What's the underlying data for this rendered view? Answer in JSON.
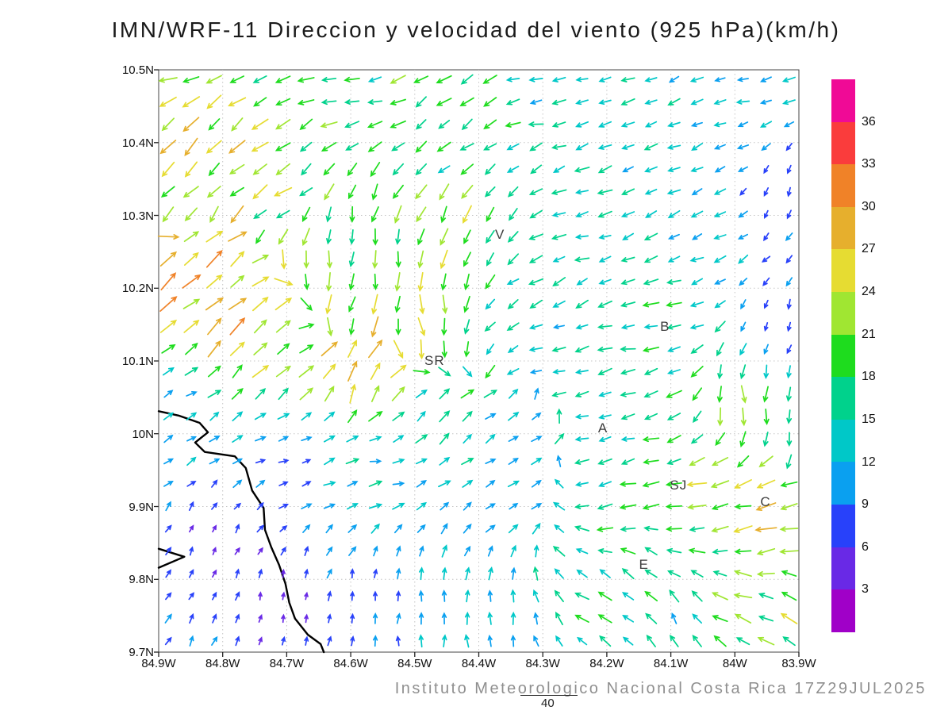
{
  "title": "IMN/WRF-11 Direccion y velocidad del viento (925 hPa)(km/h)",
  "footer": {
    "credit": "Instituto Meteorologico Nacional Costa Rica 17Z29JUL2025",
    "reference_vector_label": "40"
  },
  "axes": {
    "lon_min": -84.9,
    "lon_max": -83.9,
    "lat_min": 9.7,
    "lat_max": 10.5,
    "x_ticks": [
      "84.9W",
      "84.8W",
      "84.7W",
      "84.6W",
      "84.5W",
      "84.4W",
      "84.3W",
      "84.2W",
      "84.1W",
      "84W",
      "83.9W"
    ],
    "y_ticks": [
      "10.5N",
      "10.4N",
      "10.3N",
      "10.2N",
      "10.1N",
      "10N",
      "9.9N",
      "9.8N",
      "9.7N"
    ],
    "grid": "dotted"
  },
  "colorbar": {
    "levels": [
      3,
      6,
      9,
      12,
      15,
      18,
      21,
      24,
      27,
      30,
      33,
      36
    ],
    "colors_low_to_high": [
      "#a000c8",
      "#6929e6",
      "#2841fa",
      "#0aa0f0",
      "#00c8c8",
      "#00d28c",
      "#1edc1e",
      "#a0e632",
      "#e6dc32",
      "#e6af2d",
      "#f08228",
      "#fa3c3c",
      "#f00a96"
    ],
    "units": "km/h"
  },
  "stations": [
    {
      "label": "V",
      "lon": -84.367,
      "lat": 10.273
    },
    {
      "label": "B",
      "lon": -84.109,
      "lat": 10.147
    },
    {
      "label": "SR",
      "lon": -84.469,
      "lat": 10.1
    },
    {
      "label": "A",
      "lon": -84.206,
      "lat": 10.007
    },
    {
      "label": "SJ",
      "lon": -84.088,
      "lat": 9.929
    },
    {
      "label": "C",
      "lon": -83.952,
      "lat": 9.906
    },
    {
      "label": "E",
      "lon": -84.142,
      "lat": 9.82
    }
  ],
  "coastlines": [
    [
      [
        -84.9,
        10.031
      ],
      [
        -84.869,
        10.025
      ],
      [
        -84.836,
        10.015
      ],
      [
        -84.823,
        10.002
      ],
      [
        -84.843,
        9.988
      ],
      [
        -84.828,
        9.975
      ],
      [
        -84.781,
        9.969
      ],
      [
        -84.764,
        9.953
      ],
      [
        -84.754,
        9.922
      ],
      [
        -84.736,
        9.898
      ],
      [
        -84.734,
        9.868
      ],
      [
        -84.724,
        9.844
      ],
      [
        -84.712,
        9.82
      ],
      [
        -84.702,
        9.794
      ],
      [
        -84.696,
        9.768
      ],
      [
        -84.687,
        9.746
      ],
      [
        -84.667,
        9.724
      ],
      [
        -84.647,
        9.711
      ],
      [
        -84.642,
        9.7
      ]
    ],
    [
      [
        -84.9,
        9.842
      ],
      [
        -84.86,
        9.831
      ],
      [
        -84.9,
        9.816
      ]
    ]
  ],
  "chart_data": {
    "type": "scatter",
    "variant": "wind_vector_field",
    "model": "IMN/WRF-11",
    "pressure_level": "925 hPa",
    "units": "km/h",
    "valid_time": "17Z29JUL2025",
    "reference_speed": 40,
    "speed_levels": [
      3,
      6,
      9,
      12,
      15,
      18,
      21,
      24,
      27,
      30,
      33,
      36
    ],
    "grid": {
      "nx": 28,
      "ny": 26,
      "lon_min": -84.885,
      "lon_max": -83.915,
      "lat_min": 9.715,
      "lat_max": 10.487
    },
    "feature_format": [
      "lon",
      "lat",
      "dir_deg_ccw_from_east_toward",
      "speed_kmh"
    ],
    "flow_features": [
      [
        -84.87,
        10.48,
        190,
        20
      ],
      [
        -84.6,
        10.47,
        190,
        17
      ],
      [
        -84.45,
        10.4,
        215,
        17
      ],
      [
        -84.3,
        10.47,
        185,
        14
      ],
      [
        -84.0,
        10.46,
        195,
        12
      ],
      [
        -84.87,
        10.43,
        230,
        24
      ],
      [
        -84.87,
        10.36,
        225,
        26
      ],
      [
        -84.7,
        10.33,
        215,
        22
      ],
      [
        -84.82,
        10.22,
        40,
        30
      ],
      [
        -84.75,
        10.13,
        45,
        26
      ],
      [
        -84.63,
        10.27,
        270,
        18
      ],
      [
        -84.55,
        10.22,
        265,
        21
      ],
      [
        -84.57,
        10.17,
        255,
        25
      ],
      [
        -84.43,
        10.28,
        245,
        23
      ],
      [
        -84.25,
        10.28,
        195,
        14
      ],
      [
        -84.05,
        10.3,
        200,
        12
      ],
      [
        -83.93,
        10.33,
        250,
        6
      ],
      [
        -83.93,
        10.15,
        255,
        7
      ],
      [
        -84.12,
        10.15,
        185,
        17
      ],
      [
        -84.3,
        10.13,
        195,
        12
      ],
      [
        -84.33,
        10.21,
        210,
        16
      ],
      [
        -84.58,
        10.09,
        70,
        29
      ],
      [
        -84.48,
        10.16,
        280,
        23
      ],
      [
        -84.85,
        10.0,
        30,
        10
      ],
      [
        -84.68,
        9.97,
        20,
        8
      ],
      [
        -84.55,
        9.95,
        10,
        13
      ],
      [
        -84.82,
        9.86,
        70,
        5
      ],
      [
        -84.7,
        9.78,
        80,
        4
      ],
      [
        -84.55,
        9.78,
        90,
        8
      ],
      [
        -84.38,
        9.76,
        90,
        12
      ],
      [
        -84.35,
        9.92,
        25,
        11
      ],
      [
        -84.47,
        10.02,
        45,
        16
      ],
      [
        -84.32,
        10.0,
        30,
        12
      ],
      [
        -84.2,
        10.0,
        195,
        16
      ],
      [
        -84.18,
        9.92,
        190,
        17
      ],
      [
        -84.05,
        9.94,
        195,
        22
      ],
      [
        -83.94,
        9.9,
        190,
        26
      ],
      [
        -84.0,
        10.04,
        275,
        21
      ],
      [
        -83.92,
        10.0,
        270,
        15
      ],
      [
        -84.14,
        9.81,
        145,
        17
      ],
      [
        -83.93,
        9.74,
        155,
        21
      ],
      [
        -84.1,
        9.73,
        120,
        14
      ]
    ]
  }
}
